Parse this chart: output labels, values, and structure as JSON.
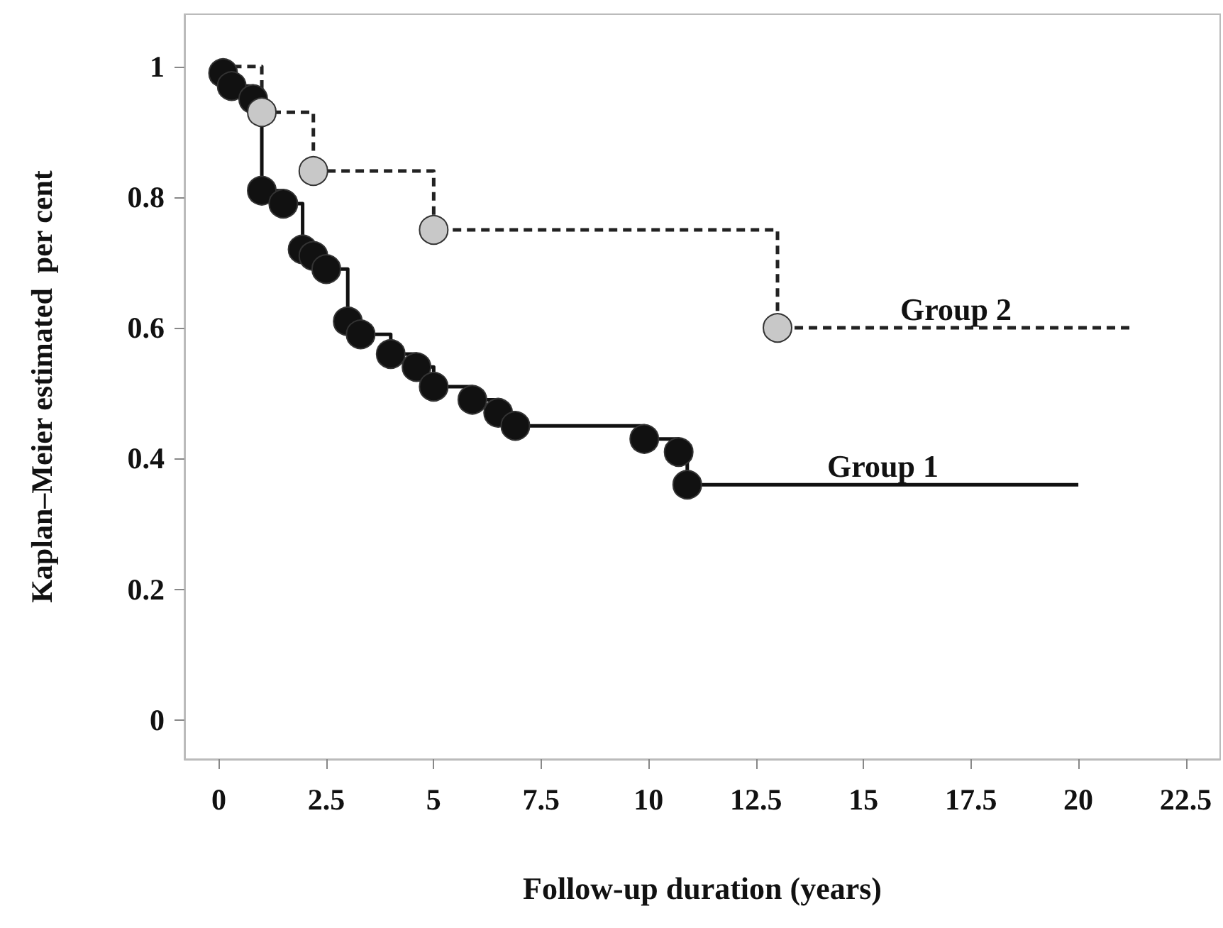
{
  "chart_data": {
    "type": "step",
    "xlabel": "Follow-up duration (years)",
    "ylabel": "Kaplan–Meier estimated  per cent",
    "xlim": [
      -0.8,
      23.3
    ],
    "ylim": [
      -0.06,
      1.08
    ],
    "xticks": [
      0,
      2.5,
      5,
      7.5,
      10,
      12.5,
      15,
      17.5,
      20,
      22.5
    ],
    "yticks": [
      0,
      0.2,
      0.4,
      0.6,
      0.8,
      1
    ],
    "series": [
      {
        "name": "Group 1",
        "color": "#111111",
        "line_style": "solid",
        "marker": "none",
        "x": [
          0,
          0.1,
          0.3,
          0.8,
          1.0,
          1.5,
          1.95,
          2.2,
          2.5,
          3.0,
          3.3,
          4.0,
          4.6,
          5.0,
          5.9,
          6.5,
          6.9,
          9.9,
          10.7,
          10.9,
          20
        ],
        "values": [
          1,
          0.99,
          0.97,
          0.95,
          0.81,
          0.79,
          0.72,
          0.71,
          0.69,
          0.61,
          0.59,
          0.56,
          0.54,
          0.51,
          0.49,
          0.47,
          0.45,
          0.43,
          0.41,
          0.36,
          0.36
        ]
      },
      {
        "type": "scatter",
        "color": "#111111",
        "marker": "circle",
        "x": [
          0.1,
          0.3,
          0.8,
          1.0,
          1.5,
          1.95,
          2.2,
          2.5,
          3.0,
          3.3,
          4.0,
          4.6,
          5.0,
          5.9,
          6.5,
          6.9,
          9.9,
          10.7,
          10.9
        ],
        "values": [
          0.99,
          0.97,
          0.95,
          0.81,
          0.79,
          0.72,
          0.71,
          0.69,
          0.61,
          0.59,
          0.56,
          0.54,
          0.51,
          0.49,
          0.47,
          0.45,
          0.43,
          0.41,
          0.36
        ]
      },
      {
        "name": "Group 2",
        "color": "#222222",
        "line_style": "dashed",
        "marker": "none",
        "x": [
          0,
          1.0,
          2.2,
          5.0,
          13.0,
          21.3
        ],
        "values": [
          1,
          0.93,
          0.84,
          0.75,
          0.6,
          0.6
        ]
      },
      {
        "type": "scatter",
        "color": "#c8c8c8",
        "marker": "circle",
        "x": [
          1.0,
          2.2,
          5.0,
          13.0
        ],
        "values": [
          0.93,
          0.84,
          0.75,
          0.6
        ]
      }
    ]
  }
}
